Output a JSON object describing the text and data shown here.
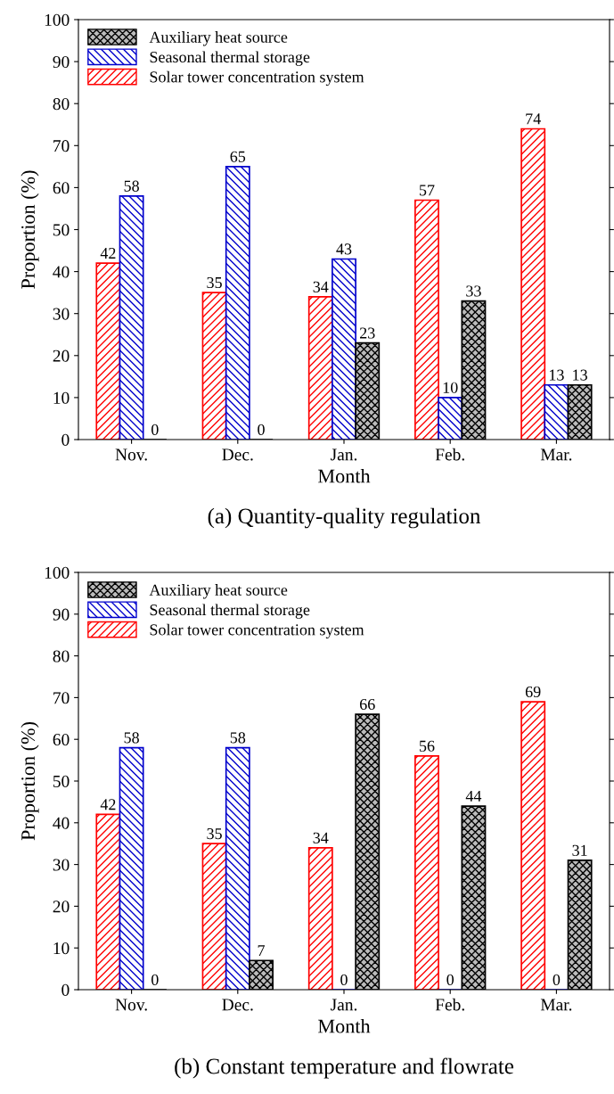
{
  "chart_data": [
    {
      "type": "bar",
      "title": "(a) Quantity-quality regulation",
      "xlabel": "Month",
      "ylabel": "Proportion (%)",
      "categories": [
        "Nov.",
        "Dec.",
        "Jan.",
        "Feb.",
        "Mar."
      ],
      "series": [
        {
          "name": "Solar tower concentration system",
          "color": "#ff0000",
          "values": [
            42,
            35,
            34,
            57,
            74
          ]
        },
        {
          "name": "Seasonal thermal storage",
          "color": "#0000cc",
          "values": [
            58,
            65,
            43,
            10,
            13
          ]
        },
        {
          "name": "Auxiliary heat source",
          "color": "#000000",
          "values": [
            0,
            0,
            23,
            33,
            13
          ]
        }
      ],
      "ylim": [
        0,
        100
      ],
      "yticks": [
        0,
        10,
        20,
        30,
        40,
        50,
        60,
        70,
        80,
        90,
        100
      ],
      "data_labels": true,
      "legend": "top left",
      "grid": false
    },
    {
      "type": "bar",
      "title": "(b) Constant temperature and flowrate",
      "xlabel": "Month",
      "ylabel": "Proportion (%)",
      "categories": [
        "Nov.",
        "Dec.",
        "Jan.",
        "Feb.",
        "Mar."
      ],
      "series": [
        {
          "name": "Solar tower concentration system",
          "color": "#ff0000",
          "values": [
            42,
            35,
            34,
            56,
            69
          ]
        },
        {
          "name": "Seasonal thermal storage",
          "color": "#0000cc",
          "values": [
            58,
            58,
            0,
            0,
            0
          ]
        },
        {
          "name": "Auxiliary heat source",
          "color": "#000000",
          "values": [
            0,
            7,
            66,
            44,
            31
          ]
        }
      ],
      "ylim": [
        0,
        100
      ],
      "yticks": [
        0,
        10,
        20,
        30,
        40,
        50,
        60,
        70,
        80,
        90,
        100
      ],
      "data_labels": true,
      "legend": "top left",
      "grid": false
    }
  ]
}
